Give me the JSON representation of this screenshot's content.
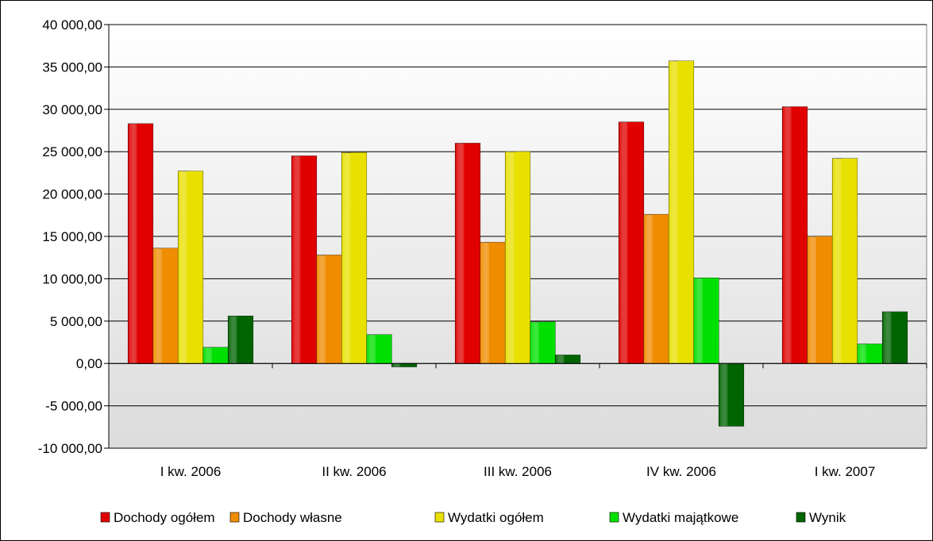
{
  "chart_data": {
    "type": "bar",
    "title": "",
    "xlabel": "",
    "ylabel": "",
    "categories": [
      "I kw. 2006",
      "II kw. 2006",
      "III kw. 2006",
      "IV kw. 2006",
      "I kw. 2007"
    ],
    "ylim": [
      -10000,
      40000
    ],
    "yticks": [
      40000,
      35000,
      30000,
      25000,
      20000,
      15000,
      10000,
      5000,
      0,
      -5000,
      -10000
    ],
    "ytick_labels": [
      "40 000,00",
      "35 000,00",
      "30 000,00",
      "25 000,00",
      "20 000,00",
      "15 000,00",
      "10 000,00",
      "5 000,00",
      "0,00",
      "-5 000,00",
      "-10 000,00"
    ],
    "grid": true,
    "legend_position": "bottom",
    "series": [
      {
        "name": "Dochody ogółem",
        "color": "#e00000",
        "values": [
          28300,
          24500,
          26000,
          28500,
          30300
        ]
      },
      {
        "name": "Dochody własne",
        "color": "#f08c00",
        "values": [
          13600,
          12800,
          14300,
          17600,
          15000
        ]
      },
      {
        "name": "Wydatki ogółem",
        "color": "#e8e000",
        "values": [
          22700,
          24900,
          25000,
          35700,
          24200
        ]
      },
      {
        "name": "Wydatki majątkowe",
        "color": "#00e000",
        "values": [
          1900,
          3400,
          4900,
          10100,
          2300
        ]
      },
      {
        "name": "Wynik",
        "color": "#006400",
        "values": [
          5600,
          -400,
          1000,
          -7400,
          6100
        ]
      }
    ]
  }
}
